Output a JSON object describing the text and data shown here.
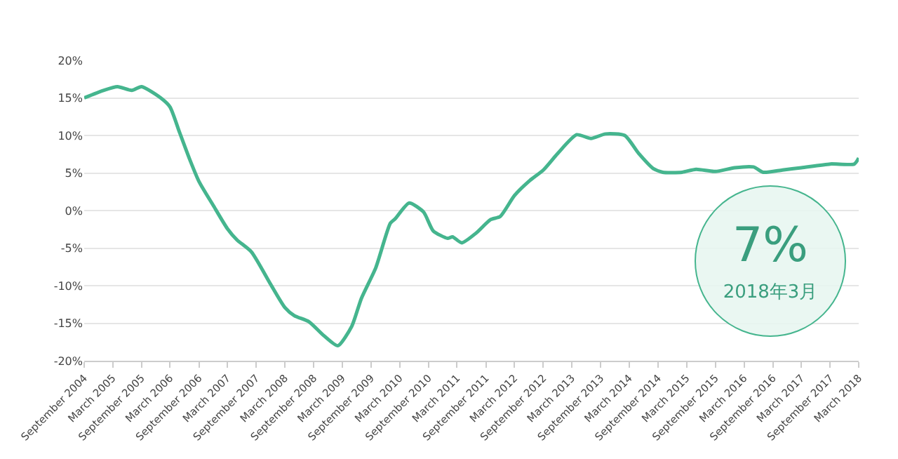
{
  "chart_data": {
    "type": "line",
    "x": [
      "2004-09",
      "2005-01",
      "2005-04",
      "2005-07",
      "2005-09",
      "2006-01",
      "2006-03",
      "2006-05",
      "2006-07",
      "2006-09",
      "2006-12",
      "2007-03",
      "2007-05",
      "2007-08",
      "2007-12",
      "2008-03",
      "2008-05",
      "2008-08",
      "2008-11",
      "2009-02",
      "2009-05",
      "2009-07",
      "2009-10",
      "2010-01",
      "2010-02",
      "2010-05",
      "2010-08",
      "2010-10",
      "2011-01",
      "2011-02",
      "2011-04",
      "2011-07",
      "2011-10",
      "2011-12",
      "2012-03",
      "2012-06",
      "2012-09",
      "2012-12",
      "2013-04",
      "2013-07",
      "2013-10",
      "2014-02",
      "2014-05",
      "2014-08",
      "2014-10",
      "2015-02",
      "2015-05",
      "2015-09",
      "2016-01",
      "2016-05",
      "2016-07",
      "2016-11",
      "2017-03",
      "2017-09",
      "2018-02",
      "2018-03"
    ],
    "series": [
      {
        "color": "#45b58e",
        "values": [
          15.0,
          16.0,
          16.5,
          16.0,
          16.5,
          15.0,
          13.8,
          10.4,
          7.0,
          3.9,
          0.7,
          -2.4,
          -3.9,
          -5.5,
          -9.8,
          -12.9,
          -14.0,
          -14.8,
          -16.6,
          -18.0,
          -15.4,
          -11.7,
          -7.6,
          -1.7,
          -1.1,
          1.0,
          -0.2,
          -2.7,
          -3.7,
          -3.5,
          -4.3,
          -3.0,
          -1.2,
          -0.8,
          2.0,
          3.9,
          5.4,
          7.6,
          10.1,
          9.6,
          10.2,
          10.0,
          7.6,
          5.6,
          5.1,
          5.1,
          5.5,
          5.2,
          5.7,
          5.8,
          5.1,
          5.4,
          5.7,
          6.2,
          6.2,
          7.0
        ]
      }
    ],
    "xlim": [
      "2004-09",
      "2018-03"
    ],
    "xticks": [
      {
        "value": "2004-09",
        "label": "September 2004"
      },
      {
        "value": "2005-03",
        "label": "March 2005"
      },
      {
        "value": "2005-09",
        "label": "September 2005"
      },
      {
        "value": "2006-03",
        "label": "March 2006"
      },
      {
        "value": "2006-09",
        "label": "September 2006"
      },
      {
        "value": "2007-03",
        "label": "March 2007"
      },
      {
        "value": "2007-09",
        "label": "September 2007"
      },
      {
        "value": "2008-03",
        "label": "March 2008"
      },
      {
        "value": "2008-09",
        "label": "September 2008"
      },
      {
        "value": "2009-03",
        "label": "March 2009"
      },
      {
        "value": "2009-09",
        "label": "September 2009"
      },
      {
        "value": "2010-03",
        "label": "March 2010"
      },
      {
        "value": "2010-09",
        "label": "September 2010"
      },
      {
        "value": "2011-03",
        "label": "March 2011"
      },
      {
        "value": "2011-09",
        "label": "September 2011"
      },
      {
        "value": "2012-03",
        "label": "March 2012"
      },
      {
        "value": "2012-09",
        "label": "September 2012"
      },
      {
        "value": "2013-03",
        "label": "March 2013"
      },
      {
        "value": "2013-09",
        "label": "September 2013"
      },
      {
        "value": "2014-03",
        "label": "March 2014"
      },
      {
        "value": "2014-09",
        "label": "September 2014"
      },
      {
        "value": "2015-03",
        "label": "March 2015"
      },
      {
        "value": "2015-09",
        "label": "September 2015"
      },
      {
        "value": "2016-03",
        "label": "March 2016"
      },
      {
        "value": "2016-09",
        "label": "September 2016"
      },
      {
        "value": "2017-03",
        "label": "March 2017"
      },
      {
        "value": "2017-09",
        "label": "September 2017"
      },
      {
        "value": "2018-03",
        "label": "March 2018"
      }
    ],
    "ylim": [
      -20,
      20
    ],
    "yticks": [
      {
        "value": -20,
        "label": "-20%"
      },
      {
        "value": -15,
        "label": "-15%"
      },
      {
        "value": -10,
        "label": "-10%"
      },
      {
        "value": -5,
        "label": "-5%"
      },
      {
        "value": 0,
        "label": "0%"
      },
      {
        "value": 5,
        "label": "5%"
      },
      {
        "value": 10,
        "label": "10%"
      },
      {
        "value": 15,
        "label": "15%"
      },
      {
        "value": 20,
        "label": "20%"
      }
    ],
    "grid": "y",
    "marker": "none",
    "line_style": "solid",
    "annotations": [
      "7%",
      "2018年3月"
    ]
  }
}
